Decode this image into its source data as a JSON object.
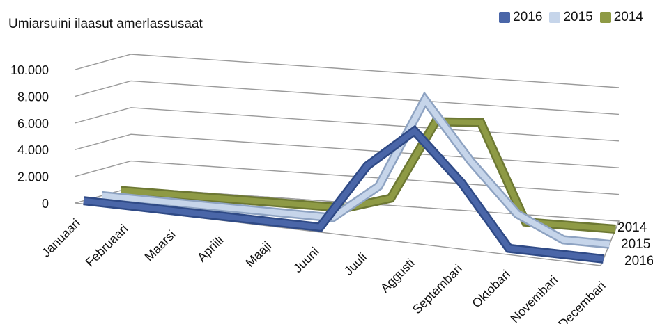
{
  "chart_data": {
    "type": "line",
    "title": "Umiarsuini ilaasut amerlassusaat",
    "categories": [
      "Januaari",
      "Februaari",
      "Maarsi",
      "Apriili",
      "Maaji",
      "Juuni",
      "Juuli",
      "Aggusti",
      "Septembari",
      "Oktobari",
      "Novembari",
      "Decembari"
    ],
    "y_ticks": [
      "0",
      "2.000",
      "4.000",
      "6.000",
      "8.000",
      "10.000"
    ],
    "ylim": [
      0,
      10000
    ],
    "depth_labels": [
      "2014",
      "2015",
      "2016"
    ],
    "legend_position": "top-right",
    "grid": true,
    "series": [
      {
        "name": "2016",
        "color": "#4a66a8",
        "values": [
          0,
          0,
          0,
          0,
          0,
          0,
          5000,
          8000,
          4500,
          0,
          0,
          0
        ]
      },
      {
        "name": "2015",
        "color": "#c6d5ea",
        "values": [
          0,
          0,
          0,
          0,
          0,
          0,
          2700,
          9500,
          5200,
          1600,
          0,
          0
        ]
      },
      {
        "name": "2014",
        "color": "#8e9a45",
        "values": [
          0,
          0,
          0,
          0,
          0,
          0,
          1000,
          7000,
          7200,
          0,
          0,
          0
        ]
      }
    ]
  }
}
